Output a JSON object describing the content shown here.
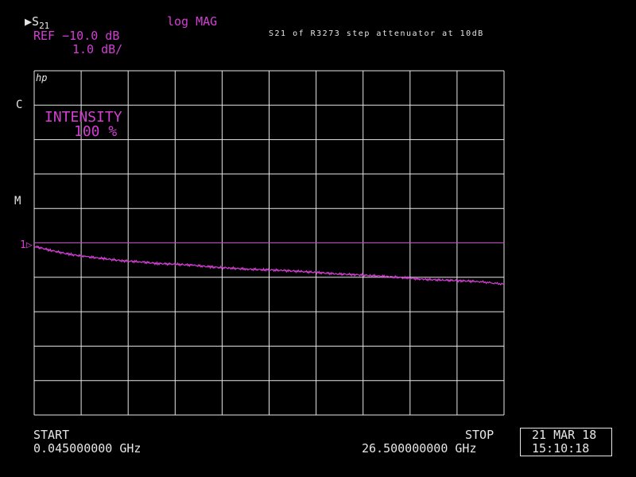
{
  "header": {
    "marker_glyph": "▶",
    "parameter": "S",
    "parameter_sub": "21",
    "format": "log MAG",
    "ref": "REF −10.0 dB",
    "scale": "1.0 dB/",
    "title": "S21 of R3273 step attenuator at 10dB"
  },
  "side": {
    "c": "C",
    "m": "M",
    "ref_position": "1▷"
  },
  "overlay": {
    "intensity_label": "INTENSITY",
    "intensity_value": "100 %",
    "logo": "hp"
  },
  "footer": {
    "start_label": "START",
    "start_freq": "0.045000000 GHz",
    "stop_label": "STOP",
    "stop_freq": "26.500000000 GHz",
    "date": "21 MAR 18",
    "time": "15:10:18"
  },
  "colors": {
    "trace": "#d23fd2",
    "grid": "#e6e6e6",
    "background": "#000000"
  },
  "chart_data": {
    "type": "line",
    "x_range_ghz": [
      0.045,
      26.5
    ],
    "divisions_x": 10,
    "divisions_y": 10,
    "ref_level_db": -10.0,
    "scale_db_per_div": 1.0,
    "ref_division_from_top": 5,
    "series": [
      {
        "x": [
          0.045,
          1.0,
          2.0,
          3.0,
          4.0,
          5.0,
          6.0,
          7.0,
          8.0,
          9.0,
          10.0,
          11.0,
          12.0,
          13.0,
          14.0,
          15.0,
          16.0,
          17.0,
          18.0,
          19.0,
          20.0,
          21.0,
          22.0,
          23.0,
          24.0,
          25.0,
          26.5
        ],
        "y": [
          -10.1,
          -10.22,
          -10.33,
          -10.4,
          -10.46,
          -10.52,
          -10.55,
          -10.6,
          -10.62,
          -10.65,
          -10.7,
          -10.73,
          -10.76,
          -10.78,
          -10.8,
          -10.83,
          -10.86,
          -10.9,
          -10.92,
          -10.95,
          -10.98,
          -11.02,
          -11.06,
          -11.08,
          -11.1,
          -11.12,
          -11.2
        ]
      }
    ]
  }
}
